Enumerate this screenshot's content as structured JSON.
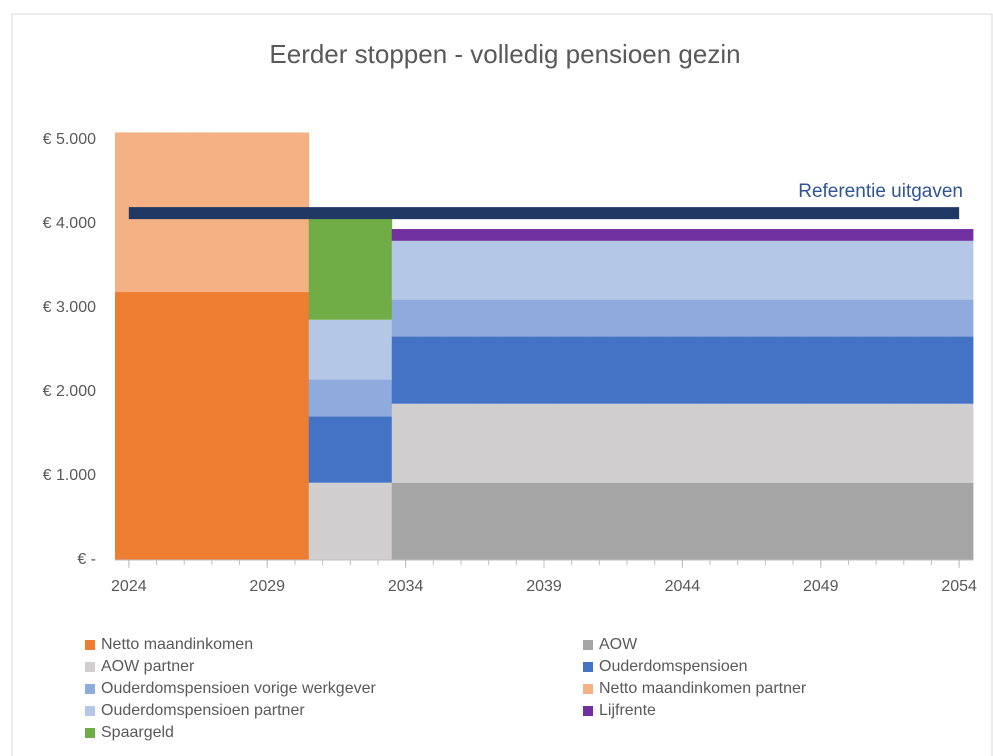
{
  "chart_data": {
    "type": "bar",
    "stacked": true,
    "title": "Eerder stoppen - volledig pensioen gezin",
    "x": [
      2024,
      2025,
      2026,
      2027,
      2028,
      2029,
      2030,
      2031,
      2032,
      2033,
      2034,
      2035,
      2036,
      2037,
      2038,
      2039,
      2040,
      2041,
      2042,
      2043,
      2044,
      2045,
      2046,
      2047,
      2048,
      2049,
      2050,
      2051,
      2052,
      2053,
      2054
    ],
    "xlim": [
      2023.5,
      2054.5
    ],
    "xticks": [
      2024,
      2029,
      2034,
      2039,
      2044,
      2049,
      2054
    ],
    "ylim": [
      0,
      5500
    ],
    "yticks": [
      {
        "value": 0,
        "label": "€ -"
      },
      {
        "value": 1000,
        "label": "€ 1.000"
      },
      {
        "value": 2000,
        "label": "€ 2.000"
      },
      {
        "value": 3000,
        "label": "€ 3.000"
      },
      {
        "value": 4000,
        "label": "€ 4.000"
      },
      {
        "value": 5000,
        "label": "€ 5.000"
      }
    ],
    "grid": false,
    "series": [
      {
        "name": "Netto maandinkomen",
        "color": "#ed7d31",
        "values": [
          3190,
          3190,
          3190,
          3190,
          3190,
          3190,
          3190,
          0,
          0,
          0,
          0,
          0,
          0,
          0,
          0,
          0,
          0,
          0,
          0,
          0,
          0,
          0,
          0,
          0,
          0,
          0,
          0,
          0,
          0,
          0,
          0
        ]
      },
      {
        "name": "AOW",
        "color": "#a5a5a5",
        "values": [
          0,
          0,
          0,
          0,
          0,
          0,
          0,
          0,
          0,
          0,
          920,
          920,
          920,
          920,
          920,
          920,
          920,
          920,
          920,
          920,
          920,
          920,
          920,
          920,
          920,
          920,
          920,
          920,
          920,
          920,
          920
        ]
      },
      {
        "name": "AOW partner",
        "color": "#d0cece",
        "values": [
          0,
          0,
          0,
          0,
          0,
          0,
          0,
          920,
          920,
          920,
          940,
          940,
          940,
          940,
          940,
          940,
          940,
          940,
          940,
          940,
          940,
          940,
          940,
          940,
          940,
          940,
          940,
          940,
          940,
          940,
          940
        ]
      },
      {
        "name": "Ouderdomspensioen",
        "color": "#4472c4",
        "values": [
          0,
          0,
          0,
          0,
          0,
          0,
          0,
          790,
          790,
          790,
          800,
          800,
          800,
          800,
          800,
          800,
          800,
          800,
          800,
          800,
          800,
          800,
          800,
          800,
          800,
          800,
          800,
          800,
          800,
          800,
          800
        ]
      },
      {
        "name": "Ouderdomspensioen vorige werkgever",
        "color": "#8faadc",
        "values": [
          0,
          0,
          0,
          0,
          0,
          0,
          0,
          440,
          440,
          440,
          440,
          440,
          440,
          440,
          440,
          440,
          440,
          440,
          440,
          440,
          440,
          440,
          440,
          440,
          440,
          440,
          440,
          440,
          440,
          440,
          440
        ]
      },
      {
        "name": "Netto maandinkomen partner",
        "color": "#f4b183",
        "values": [
          1900,
          1900,
          1900,
          1900,
          1900,
          1900,
          1900,
          0,
          0,
          0,
          0,
          0,
          0,
          0,
          0,
          0,
          0,
          0,
          0,
          0,
          0,
          0,
          0,
          0,
          0,
          0,
          0,
          0,
          0,
          0,
          0
        ]
      },
      {
        "name": "Ouderdomspensioen partner",
        "color": "#b4c7e7",
        "values": [
          0,
          0,
          0,
          0,
          0,
          0,
          0,
          710,
          710,
          710,
          700,
          700,
          700,
          700,
          700,
          700,
          700,
          700,
          700,
          700,
          700,
          700,
          700,
          700,
          700,
          700,
          700,
          700,
          700,
          700,
          700
        ]
      },
      {
        "name": "Lijfrente",
        "color": "#7030a0",
        "values": [
          0,
          0,
          0,
          0,
          0,
          0,
          0,
          0,
          0,
          0,
          140,
          140,
          140,
          140,
          140,
          140,
          140,
          140,
          140,
          140,
          140,
          140,
          140,
          140,
          140,
          140,
          140,
          140,
          140,
          140,
          140
        ]
      },
      {
        "name": "Spaargeld",
        "color": "#70ad47",
        "values": [
          0,
          0,
          0,
          0,
          0,
          0,
          0,
          1210,
          1210,
          1210,
          0,
          0,
          0,
          0,
          0,
          0,
          0,
          0,
          0,
          0,
          0,
          0,
          0,
          0,
          0,
          0,
          0,
          0,
          0,
          0,
          0
        ]
      }
    ],
    "reference_line": {
      "name": "Referentie uitgaven",
      "color": "#1f3864",
      "values": [
        4130,
        4130,
        4130,
        4130,
        4130,
        4130,
        4130,
        4130,
        4130,
        4130,
        4130,
        4130,
        4130,
        4130,
        4130,
        4130,
        4130,
        4130,
        4130,
        4130,
        4130,
        4130,
        4130,
        4130,
        4130,
        4130,
        4130,
        4130,
        4130,
        4130,
        4130
      ]
    }
  }
}
